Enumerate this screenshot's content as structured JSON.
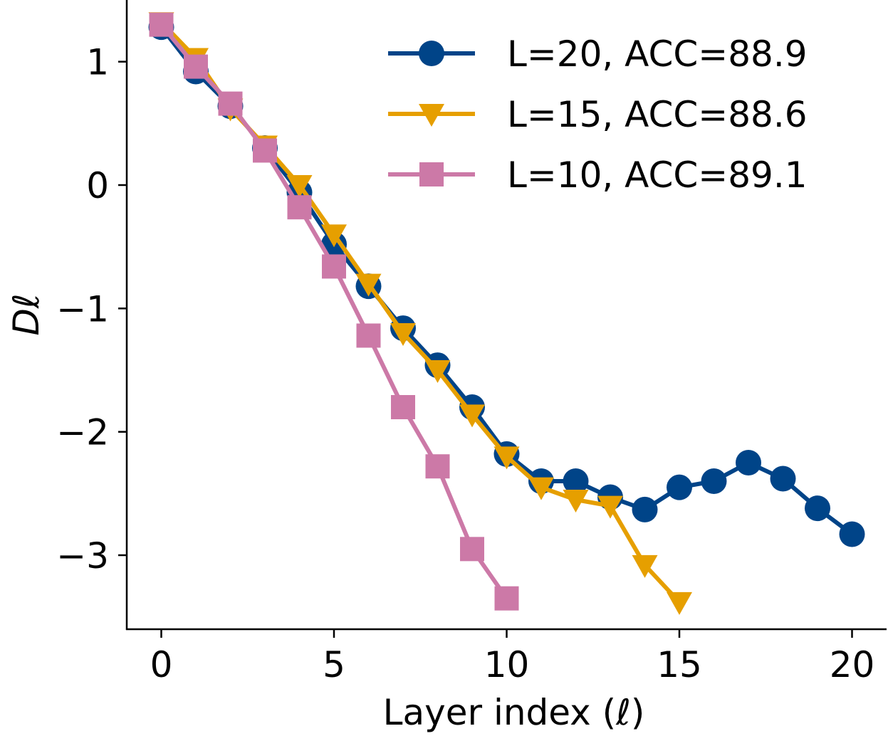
{
  "chart_data": {
    "type": "line",
    "title": "",
    "xlabel": "Layer index (ℓ)",
    "ylabel": "Dℓ",
    "xlim": [
      -1,
      21
    ],
    "ylim": [
      -3.6,
      1.5
    ],
    "xticks": [
      0,
      5,
      10,
      15,
      20
    ],
    "yticks": [
      1,
      0,
      -1,
      -2,
      -3
    ],
    "xtick_labels": [
      "0",
      "5",
      "10",
      "15",
      "20"
    ],
    "ytick_labels": [
      "1",
      "0",
      "−1",
      "−2",
      "−3"
    ],
    "grid": false,
    "legend_position": "top-right",
    "series": [
      {
        "name": "L=20, ACC=88.9",
        "color": "#004488",
        "marker": "circle",
        "x": [
          0,
          1,
          2,
          3,
          4,
          5,
          6,
          7,
          8,
          9,
          10,
          11,
          12,
          13,
          14,
          15,
          16,
          17,
          18,
          19,
          20
        ],
        "y": [
          1.28,
          0.92,
          0.64,
          0.3,
          -0.06,
          -0.48,
          -0.82,
          -1.16,
          -1.46,
          -1.8,
          -2.18,
          -2.4,
          -2.4,
          -2.53,
          -2.63,
          -2.45,
          -2.4,
          -2.25,
          -2.38,
          -2.62,
          -2.83
        ]
      },
      {
        "name": "L=15, ACC=88.6",
        "color": "#E69F00",
        "marker": "triangle-down",
        "x": [
          0,
          1,
          2,
          3,
          4,
          5,
          6,
          7,
          8,
          9,
          10,
          11,
          12,
          13,
          14,
          15
        ],
        "y": [
          1.32,
          1.03,
          0.62,
          0.32,
          0.0,
          -0.4,
          -0.8,
          -1.2,
          -1.5,
          -1.86,
          -2.2,
          -2.45,
          -2.55,
          -2.6,
          -3.08,
          -3.38
        ]
      },
      {
        "name": "L=10, ACC=89.1",
        "color": "#CC79A7",
        "marker": "square",
        "x": [
          0,
          1,
          2,
          3,
          4,
          5,
          6,
          7,
          8,
          9,
          10
        ],
        "y": [
          1.3,
          0.96,
          0.66,
          0.28,
          -0.18,
          -0.66,
          -1.22,
          -1.8,
          -2.28,
          -2.95,
          -3.35
        ]
      }
    ]
  }
}
